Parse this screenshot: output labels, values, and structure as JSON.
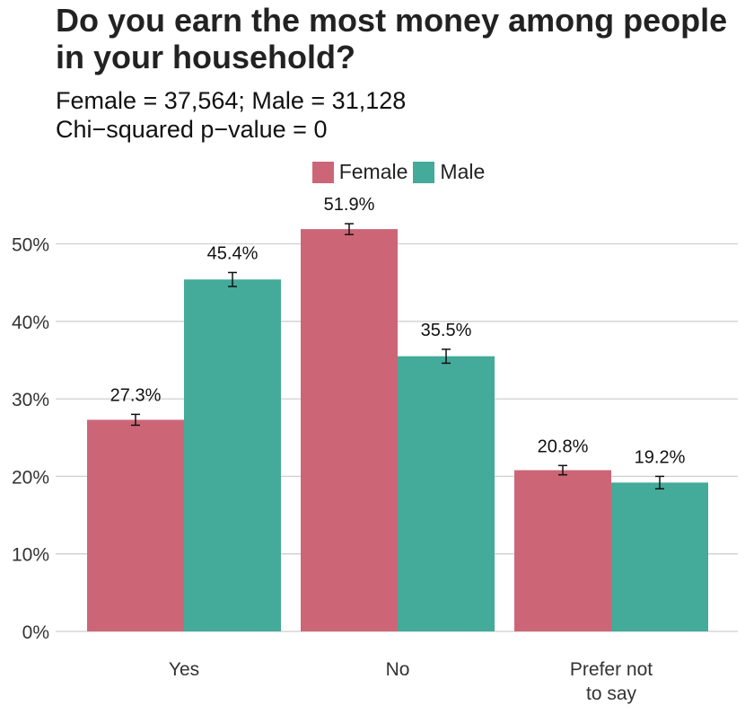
{
  "chart_data": {
    "type": "bar",
    "title_lines": [
      "Do you earn the most money among people",
      "in your household?"
    ],
    "subtitle_lines": [
      "Female = 37,564; Male = 31,128",
      "Chi−squared p−value = 0"
    ],
    "categories": [
      "Yes",
      "No",
      "Prefer not to say"
    ],
    "category_label_lines": [
      [
        "Yes"
      ],
      [
        "No"
      ],
      [
        "Prefer not",
        "to say"
      ]
    ],
    "series": [
      {
        "name": "Female",
        "color": "#CC6677",
        "values": [
          27.3,
          51.9,
          20.8
        ],
        "labels": [
          "27.3%",
          "51.9%",
          "20.8%"
        ],
        "error": [
          0.7,
          0.7,
          0.6
        ]
      },
      {
        "name": "Male",
        "color": "#44AA99",
        "values": [
          45.4,
          35.5,
          19.2
        ],
        "labels": [
          "45.4%",
          "35.5%",
          "19.2%"
        ],
        "error": [
          0.9,
          0.9,
          0.8
        ]
      }
    ],
    "yticks": [
      0,
      10,
      20,
      30,
      40,
      50
    ],
    "ytick_labels": [
      "0%",
      "10%",
      "20%",
      "30%",
      "40%",
      "50%"
    ],
    "ylim": [
      0,
      55
    ],
    "grid": true,
    "legend_position": "top"
  }
}
